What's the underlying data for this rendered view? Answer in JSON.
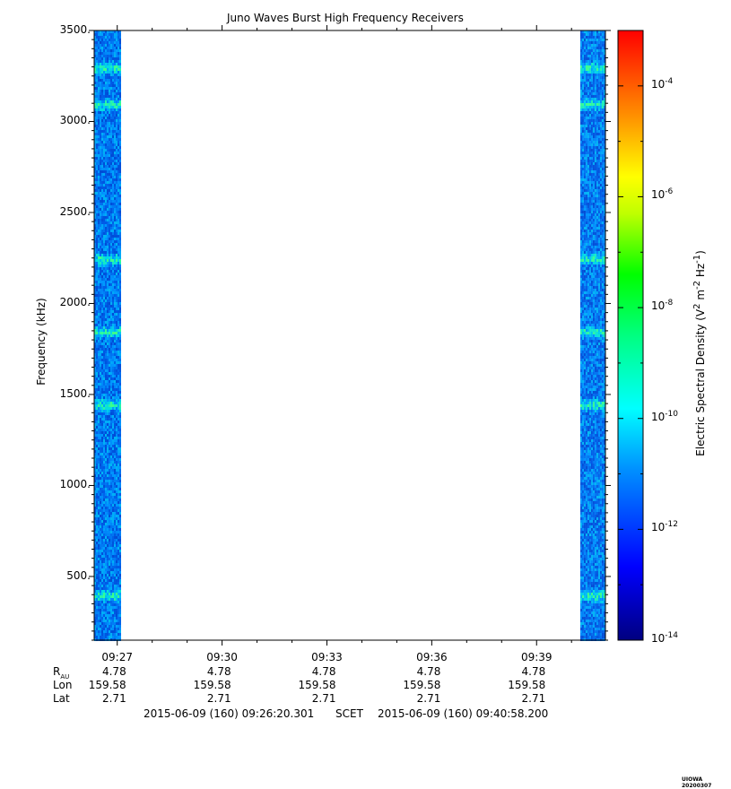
{
  "chart_data": {
    "type": "heatmap",
    "title": "Juno Waves Burst High Frequency Receivers",
    "ylabel": "Frequency (kHz)",
    "ylim": [
      150,
      3500
    ],
    "y_ticks": [
      "3500.",
      "3000.",
      "2500.",
      "2000.",
      "1500.",
      "1000.",
      "500."
    ],
    "y_tick_values": [
      3500,
      3000,
      2500,
      2000,
      1500,
      1000,
      500
    ],
    "x_ticks": [
      "09:27",
      "09:30",
      "09:33",
      "09:36",
      "09:39"
    ],
    "x_range_minutes": [
      26.34,
      40.97
    ],
    "x_tick_minutes": [
      27,
      30,
      33,
      36,
      39
    ],
    "data_blocks": [
      {
        "start": "09:26:20",
        "end": "09:27:05"
      },
      {
        "start": "09:40:15",
        "end": "09:40:58"
      }
    ],
    "emission_bands_khz": [
      400,
      1450,
      1850,
      2250,
      3100,
      3300
    ],
    "colorbar": {
      "label": "Electric Spectral Density (V",
      "label_sup1": "2",
      "label_mid": " m",
      "label_sup2": "-2",
      "label_mid2": " Hz",
      "label_sup3": "-1",
      "label_end": ")",
      "scale": "log",
      "range": [
        1e-14,
        0.001
      ],
      "tick_exponents": [
        "-4",
        "-6",
        "-8",
        "-10",
        "-12",
        "-14"
      ],
      "tick_base": "10"
    },
    "ephemeris": {
      "rows": [
        {
          "label": "R",
          "sub": "AU",
          "values": [
            "4.78",
            "4.78",
            "4.78",
            "4.78",
            "4.78"
          ]
        },
        {
          "label": "Lon",
          "values": [
            "159.58",
            "159.58",
            "159.58",
            "159.58",
            "159.58"
          ]
        },
        {
          "label": "Lat",
          "values": [
            "2.71",
            "2.71",
            "2.71",
            "2.71",
            "2.71"
          ]
        }
      ]
    },
    "time_range": {
      "start": "2015-06-09 (160) 09:26:20.301",
      "frame": "SCET",
      "end": "2015-06-09 (160) 09:40:58.200"
    },
    "stamp": "UIOWA 20200307"
  }
}
